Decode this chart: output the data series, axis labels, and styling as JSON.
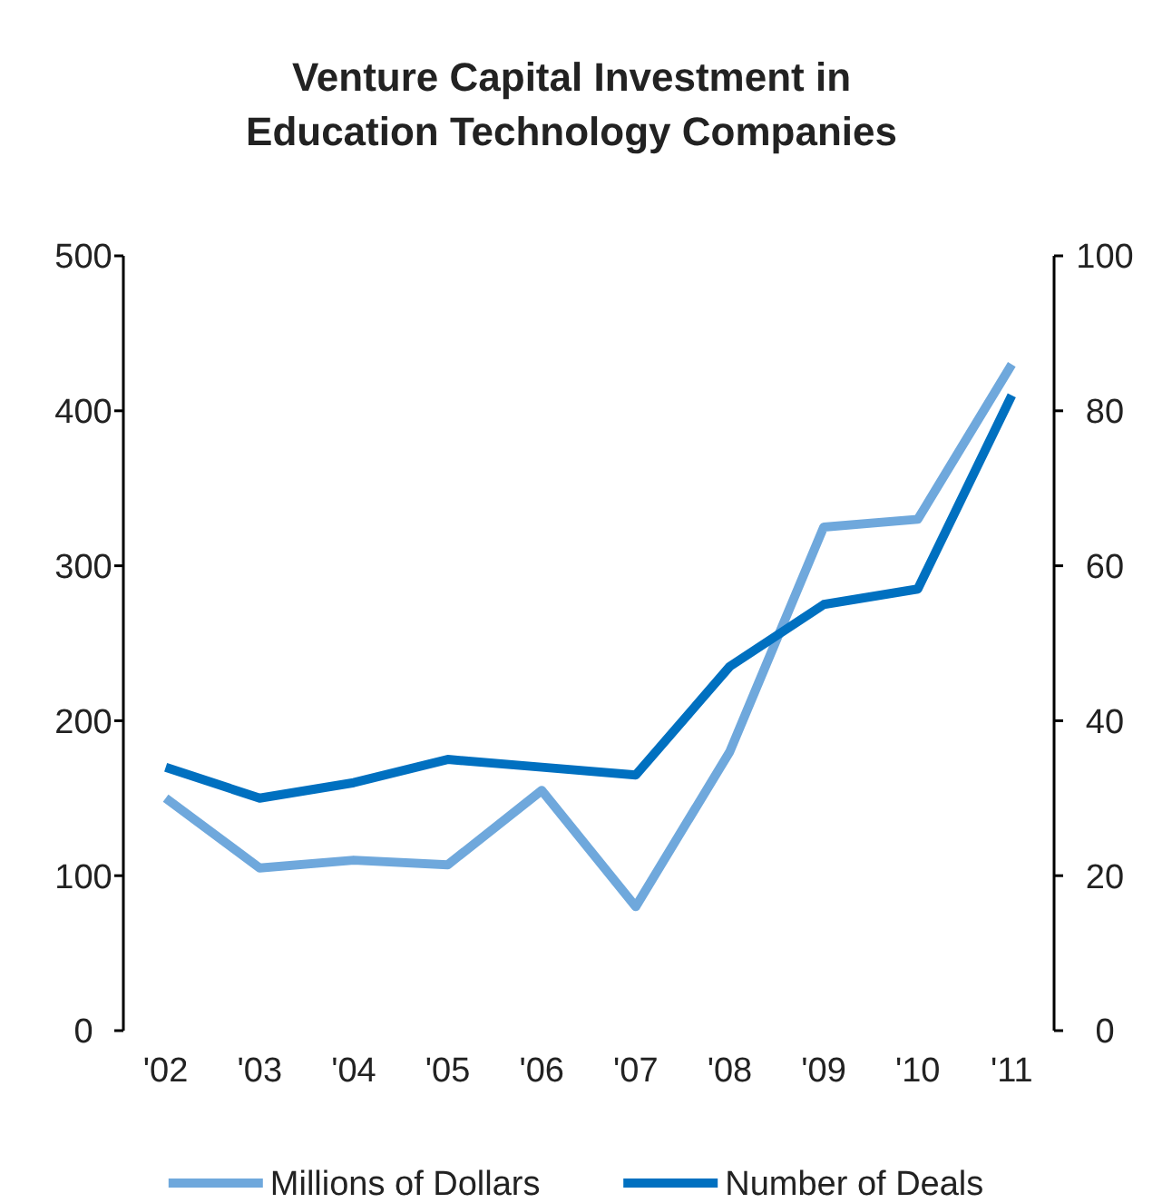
{
  "chart_data": {
    "type": "line",
    "title": "Venture Capital Investment in Education Technology Companies",
    "categories": [
      "'02",
      "'03",
      "'04",
      "'05",
      "'06",
      "'07",
      "'08",
      "'09",
      "'10",
      "'11"
    ],
    "series": [
      {
        "name": "Millions of Dollars",
        "color": "#6fa8dc",
        "values": [
          150,
          105,
          110,
          107,
          155,
          80,
          180,
          325,
          330,
          430
        ]
      },
      {
        "name": "Number of Deals",
        "color": "#0070c0",
        "axis": "y2",
        "values": [
          34,
          30,
          32,
          35,
          34,
          33,
          47,
          55,
          57,
          82
        ]
      }
    ],
    "ylim": [
      0,
      500
    ],
    "yticks": [
      0,
      100,
      200,
      300,
      400,
      500
    ],
    "y2lim": [
      0,
      100
    ],
    "y2ticks": [
      0,
      20,
      40,
      60,
      80,
      100
    ],
    "grid": false,
    "legend": "bottom",
    "marker": "none",
    "line_style": "solid"
  }
}
